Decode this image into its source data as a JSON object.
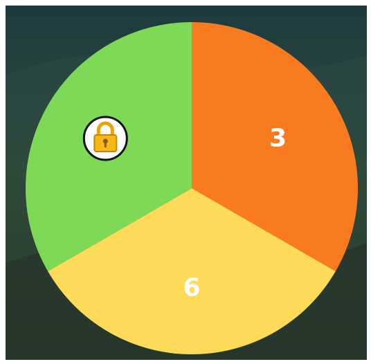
{
  "wheel": {
    "segments": [
      {
        "label": "3",
        "color": "#f97a1f"
      },
      {
        "label": "6",
        "color": "#fddb58"
      },
      {
        "locked": true,
        "color": "#7dd956"
      }
    ]
  }
}
